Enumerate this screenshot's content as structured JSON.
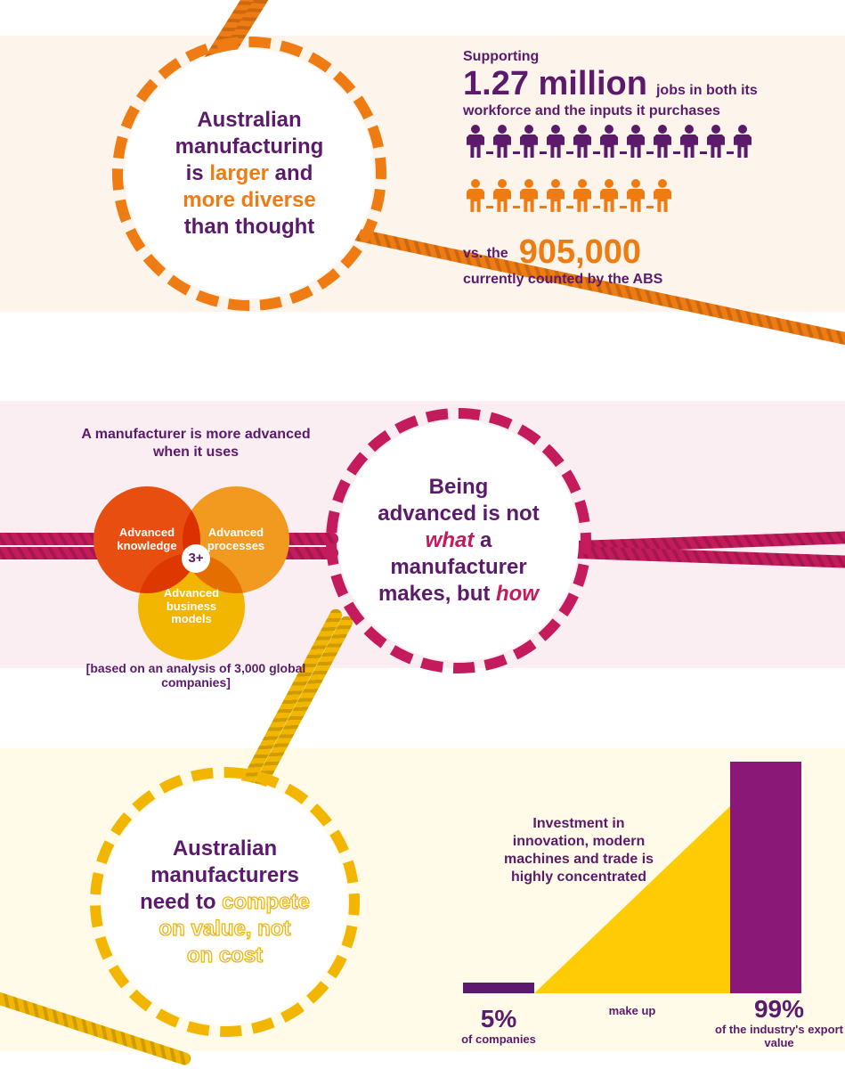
{
  "colors": {
    "purple": "#5b1a6b",
    "orange": "#ef7b13",
    "orange_light": "#f29a1f",
    "magenta": "#c31b5c",
    "yellow": "#f2b600",
    "yellow_bright": "#ffcb05",
    "band1": "#fdf5ec",
    "band2": "#fbeef2",
    "band3": "#fffbe8"
  },
  "section1": {
    "circle": {
      "line1": "Australian",
      "line2": "manufacturing",
      "line3a": "is ",
      "line3b": "larger",
      "line3c": " and",
      "line4": "more diverse",
      "line5": "than thought",
      "ring_color": "#ef7b13",
      "diameter": 280
    },
    "rope_color": "#ef7b13",
    "jobs": {
      "supporting": "Supporting",
      "big1": "1.27 million",
      "big1_color": "#5b1a6b",
      "tail1a": "jobs in both its",
      "tail1b": "workforce and the inputs it purchases",
      "row1_count": 11,
      "row1_color": "#5b1a6b",
      "vs": "vs. the",
      "big2": "905,000",
      "big2_color": "#ef7b13",
      "tail2": "currently counted by the ABS",
      "row2_count": 8,
      "row2_color": "#ef7b13"
    }
  },
  "section2": {
    "rope_color": "#c31b5c",
    "circle": {
      "line1": "Being",
      "line2a": "advanced is not",
      "line3a": "what",
      "line3b": " a manufacturer",
      "line4a": "makes, but ",
      "line4b": "how",
      "ring_color": "#c31b5c",
      "diameter": 270
    },
    "venn": {
      "title": "A manufacturer is more advanced when it uses",
      "c1": {
        "label": "Advanced knowledge",
        "color": "#e84e10"
      },
      "c2": {
        "label": "Advanced processes",
        "color": "#f29a1f"
      },
      "c3": {
        "label": "Advanced business models",
        "color": "#f2b600"
      },
      "center": "3+",
      "footnote": "[based on an analysis of 3,000 global companies]"
    }
  },
  "section3": {
    "rope_color": "#f2b600",
    "circle": {
      "line1": "Australian",
      "line2": "manufacturers",
      "line3a": "need to ",
      "line3b": "compete",
      "line4": "on value, not",
      "line5": "on cost",
      "ring_color": "#f2b600",
      "diameter": 275
    },
    "chart": {
      "caption": "Investment in innovation, modern machines and trade is highly concentrated",
      "left_value": "5%",
      "left_label": "of companies",
      "middle": "make up",
      "right_value": "99%",
      "right_label": "of the industry's export value",
      "small_bar_color": "#5b1a6b",
      "triangle_color": "#ffcb05",
      "big_bar_color": "#8a1877"
    }
  }
}
